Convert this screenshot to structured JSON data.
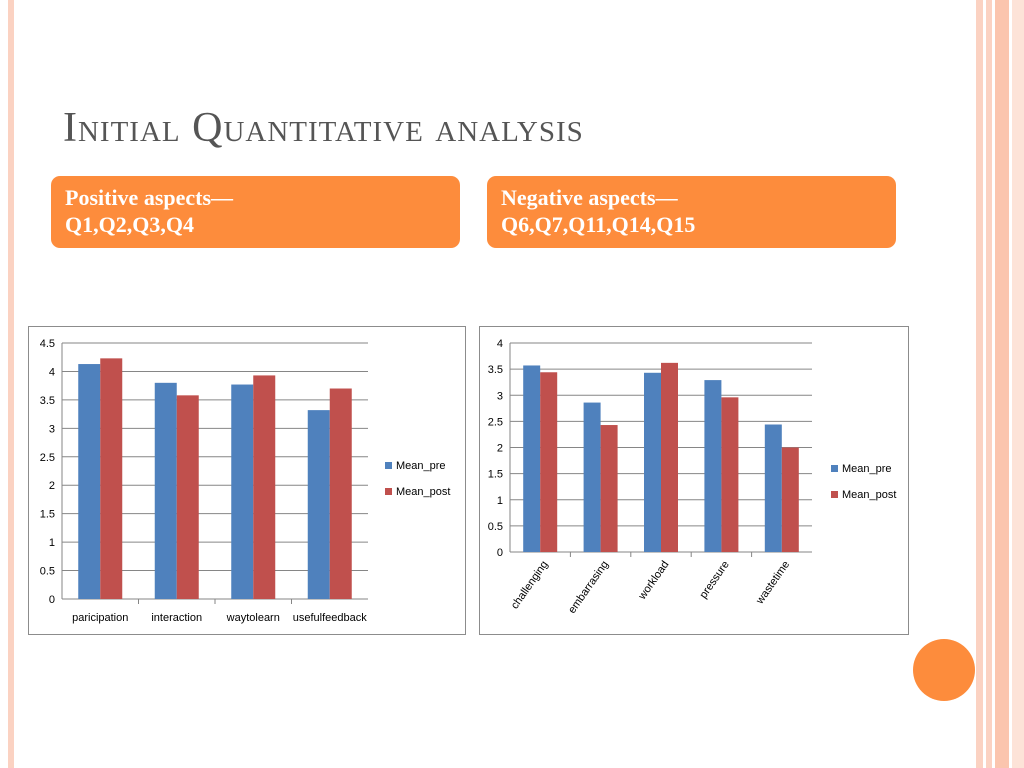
{
  "title": "Initial Quantitative analysis",
  "positive": {
    "line1": "Positive aspects—",
    "line2": "Q1,Q2,Q3,Q4"
  },
  "negative": {
    "line1": "Negative aspects—",
    "line2": "Q6,Q7,Q11,Q14,Q15"
  },
  "colors": {
    "accent": "#fd8c3c",
    "mean_pre": "#4f81bd",
    "mean_post": "#c0504d",
    "title": "#555555"
  },
  "chart_data": [
    {
      "type": "bar",
      "categories": [
        "paricipation",
        "interaction",
        "waytolearn",
        "usefulfeedback"
      ],
      "series": [
        {
          "name": "Mean_pre",
          "values": [
            4.13,
            3.8,
            3.77,
            3.32
          ]
        },
        {
          "name": "Mean_post",
          "values": [
            4.23,
            3.58,
            3.93,
            3.7
          ]
        }
      ],
      "ylim": [
        0,
        4.5
      ],
      "yticks": [
        "0",
        "0.5",
        "1",
        "1.5",
        "2",
        "2.5",
        "3",
        "3.5",
        "4",
        "4.5"
      ],
      "grid": true,
      "legend": "right"
    },
    {
      "type": "bar",
      "categories": [
        "challenging",
        "embarrasing",
        "workload",
        "pressure",
        "wastetime"
      ],
      "series": [
        {
          "name": "Mean_pre",
          "values": [
            3.57,
            2.86,
            3.43,
            3.29,
            2.44
          ]
        },
        {
          "name": "Mean_post",
          "values": [
            3.44,
            2.43,
            3.62,
            2.96,
            2.0
          ]
        }
      ],
      "ylim": [
        0,
        4
      ],
      "yticks": [
        "0",
        "0.5",
        "1",
        "1.5",
        "2",
        "2.5",
        "3",
        "3.5",
        "4"
      ],
      "grid": true,
      "legend": "right",
      "xlabel_rotation": "rotated"
    }
  ]
}
